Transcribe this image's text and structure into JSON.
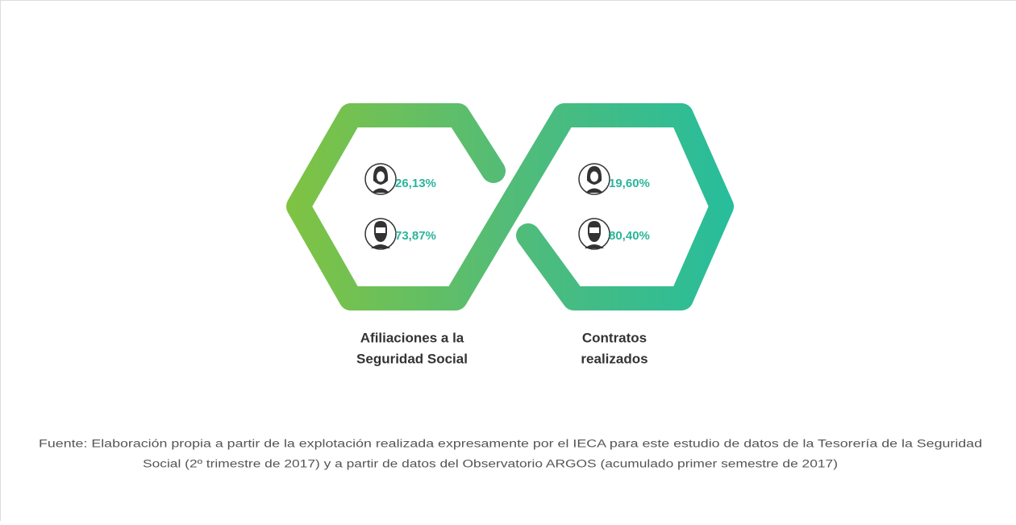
{
  "groups": [
    {
      "title_lines": [
        "Afiliaciones a la",
        "Seguridad Social"
      ],
      "women": "26,13%",
      "men": "73,87%"
    },
    {
      "title_lines": [
        "Contratos",
        "realizados"
      ],
      "women": "19,60%",
      "men": "80,40%"
    }
  ],
  "source_lines": [
    "Fuente: Elaboración propia a partir de la explotación realizada expresamente por el IECA para este estudio de datos de la Tesorería de la Seguridad",
    "Social (2º trimestre de 2017) y a partir de datos del Observatorio ARGOS (acumulado primer semestre de 2017)"
  ]
}
